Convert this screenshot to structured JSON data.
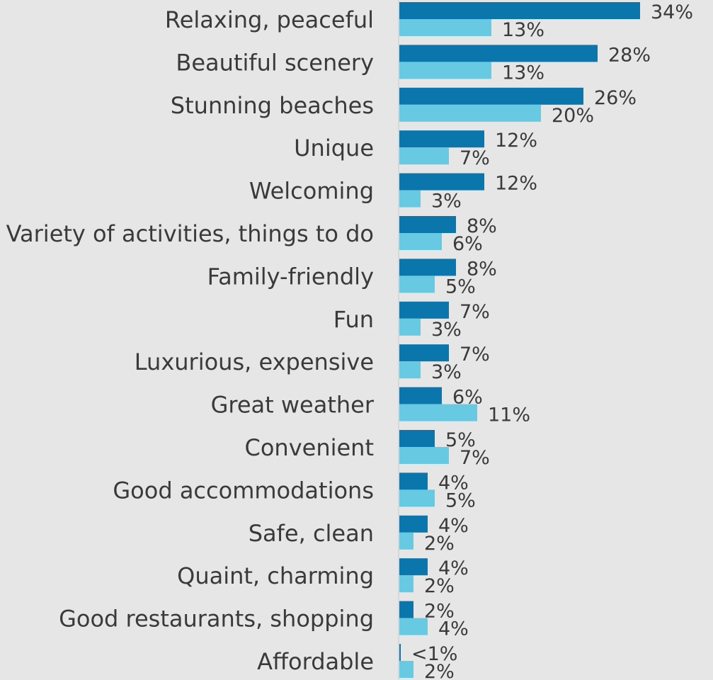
{
  "chart_data": {
    "type": "bar",
    "orientation": "horizontal",
    "categories": [
      "Relaxing, peaceful",
      "Beautiful scenery",
      "Stunning beaches",
      "Unique",
      "Welcoming",
      "Variety of activities, things to do",
      "Family-friendly",
      "Fun",
      "Luxurious, expensive",
      "Great weather",
      "Convenient",
      "Good accommodations",
      "Safe, clean",
      "Quaint, charming",
      "Good restaurants, shopping",
      "Affordable"
    ],
    "series": [
      {
        "values": [
          34,
          28,
          26,
          12,
          12,
          8,
          8,
          7,
          7,
          6,
          5,
          4,
          4,
          4,
          2,
          0.2
        ],
        "labels": [
          "34%",
          "28%",
          "26%",
          "12%",
          "12%",
          "8%",
          "8%",
          "7%",
          "7%",
          "6%",
          "5%",
          "4%",
          "4%",
          "4%",
          "2%",
          "<1%"
        ],
        "color": "#0b76ab"
      },
      {
        "values": [
          13,
          13,
          20,
          7,
          3,
          6,
          5,
          3,
          3,
          11,
          7,
          5,
          2,
          2,
          4,
          2
        ],
        "labels": [
          "13%",
          "13%",
          "20%",
          "7%",
          "3%",
          "6%",
          "5%",
          "3%",
          "3%",
          "11%",
          "7%",
          "5%",
          "2%",
          "2%",
          "4%",
          "2%"
        ],
        "color": "#68c9e3"
      }
    ],
    "grid": false,
    "legend": "none"
  }
}
